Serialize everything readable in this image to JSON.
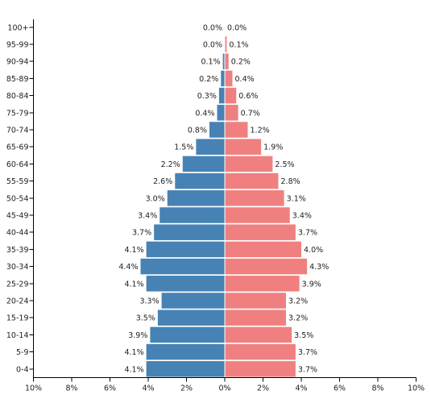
{
  "chart_data": {
    "type": "bar",
    "orientation": "horizontal",
    "layout": "population-pyramid",
    "categories": [
      "0-4",
      "5-9",
      "10-14",
      "15-19",
      "20-24",
      "25-29",
      "30-34",
      "35-39",
      "40-44",
      "45-49",
      "50-54",
      "55-59",
      "60-64",
      "65-69",
      "70-74",
      "75-79",
      "80-84",
      "85-89",
      "90-94",
      "95-99",
      "100+"
    ],
    "series": [
      {
        "side": "left",
        "color": "#4682b4",
        "values": [
          4.1,
          4.1,
          3.9,
          3.5,
          3.3,
          4.1,
          4.4,
          4.1,
          3.7,
          3.4,
          3.0,
          2.6,
          2.2,
          1.5,
          0.8,
          0.4,
          0.3,
          0.2,
          0.1,
          0.0,
          0.0
        ],
        "labels": [
          "4.1%",
          "4.1%",
          "3.9%",
          "3.5%",
          "3.3%",
          "4.1%",
          "4.4%",
          "4.1%",
          "3.7%",
          "3.4%",
          "3.0%",
          "2.6%",
          "2.2%",
          "1.5%",
          "0.8%",
          "0.4%",
          "0.3%",
          "0.2%",
          "0.1%",
          "0.0%",
          "0.0%"
        ]
      },
      {
        "side": "right",
        "color": "#f08080",
        "values": [
          3.7,
          3.7,
          3.5,
          3.2,
          3.2,
          3.9,
          4.3,
          4.0,
          3.7,
          3.4,
          3.1,
          2.8,
          2.5,
          1.9,
          1.2,
          0.7,
          0.6,
          0.4,
          0.2,
          0.1,
          0.0
        ],
        "labels": [
          "3.7%",
          "3.7%",
          "3.5%",
          "3.2%",
          "3.2%",
          "3.9%",
          "4.3%",
          "4.0%",
          "3.7%",
          "3.4%",
          "3.1%",
          "2.8%",
          "2.5%",
          "1.9%",
          "1.2%",
          "0.7%",
          "0.6%",
          "0.4%",
          "0.2%",
          "0.1%",
          "0.0%"
        ]
      }
    ],
    "xlim": [
      -10,
      10
    ],
    "x_ticks": [
      -10,
      -8,
      -6,
      -4,
      -2,
      0,
      2,
      4,
      6,
      8,
      10
    ],
    "x_tick_labels": [
      "10%",
      "8%",
      "6%",
      "4%",
      "2%",
      "0%",
      "2%",
      "4%",
      "6%",
      "8%",
      "10%"
    ],
    "grid": false,
    "title": "",
    "xlabel": "",
    "ylabel": ""
  }
}
